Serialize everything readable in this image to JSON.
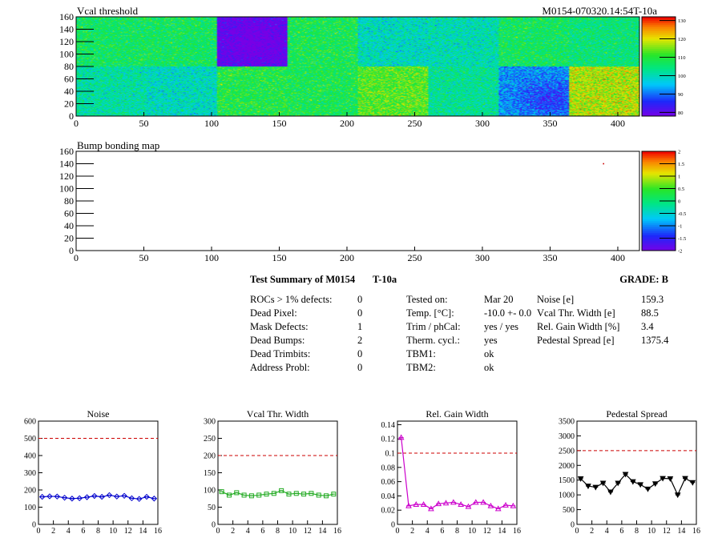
{
  "heatmap1": {
    "title": "Vcal threshold",
    "tag": "M0154-070320.14:54T-10a",
    "xticks": [
      "0",
      "50",
      "100",
      "150",
      "200",
      "250",
      "300",
      "350",
      "400"
    ],
    "yticks": [
      "0",
      "20",
      "40",
      "60",
      "80",
      "100",
      "120",
      "140",
      "160"
    ],
    "zticks": [
      "80",
      "90",
      "100",
      "110",
      "120",
      "130"
    ]
  },
  "heatmap2": {
    "title": "Bump bonding map",
    "xticks": [
      "0",
      "50",
      "100",
      "150",
      "200",
      "250",
      "300",
      "350",
      "400"
    ],
    "yticks": [
      "0",
      "20",
      "40",
      "60",
      "80",
      "100",
      "120",
      "140",
      "160"
    ],
    "zticks": [
      "-2",
      "-1.5",
      "-1",
      "-0.5",
      "0",
      "0.5",
      "1",
      "1.5",
      "2"
    ]
  },
  "summary": {
    "title": "Test Summary of M0154",
    "temp_tag": "T-10a",
    "grade": "GRADE:  B",
    "col1": [
      {
        "label": "ROCs > 1% defects:",
        "value": "0"
      },
      {
        "label": "Dead Pixel:",
        "value": "0"
      },
      {
        "label": "Mask Defects:",
        "value": "1"
      },
      {
        "label": "Dead Bumps:",
        "value": "2"
      },
      {
        "label": "Dead Trimbits:",
        "value": "0"
      },
      {
        "label": "Address Probl:",
        "value": "0"
      }
    ],
    "col2": [
      {
        "label": "Tested on:",
        "value": "Mar 20"
      },
      {
        "label": "Temp. [°C]:",
        "value": "-10.0 +- 0.0"
      },
      {
        "label": "Trim / phCal:",
        "value": "yes / yes"
      },
      {
        "label": "Therm. cycl.:",
        "value": "yes"
      },
      {
        "label": "TBM1:",
        "value": "ok"
      },
      {
        "label": "TBM2:",
        "value": "ok"
      }
    ],
    "col3": [
      {
        "label": "Noise [e]",
        "value": "159.3"
      },
      {
        "label": "Vcal Thr. Width [e]",
        "value": "88.5"
      },
      {
        "label": "Rel. Gain Width [%]",
        "value": "3.4"
      },
      {
        "label": "Pedestal Spread [e]",
        "value": "1375.4"
      }
    ]
  },
  "chart_data": [
    {
      "type": "heatmap",
      "title": "Vcal threshold",
      "xlim": [
        0,
        416
      ],
      "ylim": [
        0,
        160
      ],
      "zlim": [
        78,
        132
      ],
      "roc_mean_top": [
        107,
        107,
        80,
        108,
        100,
        101,
        107,
        105
      ],
      "roc_mean_bottom": [
        102,
        100,
        109,
        108,
        113,
        103,
        93,
        118
      ]
    },
    {
      "type": "heatmap",
      "title": "Bump bonding map",
      "xlim": [
        0,
        416
      ],
      "ylim": [
        0,
        160
      ],
      "zlim": [
        -2,
        2
      ],
      "points": [
        {
          "x": 389,
          "y": 141
        }
      ]
    },
    {
      "type": "line",
      "title": "Noise",
      "xlim": [
        0,
        16
      ],
      "ylim": [
        0,
        600
      ],
      "xticks": [
        "0",
        "2",
        "4",
        "6",
        "8",
        "10",
        "12",
        "14",
        "16"
      ],
      "yticks": [
        "0",
        "100",
        "200",
        "300",
        "400",
        "500",
        "600"
      ],
      "limit": 500,
      "x": [
        0.5,
        1.5,
        2.5,
        3.5,
        4.5,
        5.5,
        6.5,
        7.5,
        8.5,
        9.5,
        10.5,
        11.5,
        12.5,
        13.5,
        14.5,
        15.5
      ],
      "values": [
        160,
        163,
        162,
        155,
        150,
        152,
        158,
        165,
        160,
        170,
        162,
        166,
        152,
        148,
        160,
        150
      ]
    },
    {
      "type": "line",
      "title": "Vcal Thr. Width",
      "xlim": [
        0,
        16
      ],
      "ylim": [
        0,
        300
      ],
      "xticks": [
        "0",
        "2",
        "4",
        "6",
        "8",
        "10",
        "12",
        "14",
        "16"
      ],
      "yticks": [
        "0",
        "50",
        "100",
        "150",
        "200",
        "250",
        "300"
      ],
      "limit": 200,
      "x": [
        0.5,
        1.5,
        2.5,
        3.5,
        4.5,
        5.5,
        6.5,
        7.5,
        8.5,
        9.5,
        10.5,
        11.5,
        12.5,
        13.5,
        14.5,
        15.5
      ],
      "values": [
        95,
        85,
        92,
        85,
        83,
        85,
        88,
        90,
        98,
        88,
        90,
        88,
        90,
        85,
        83,
        88
      ]
    },
    {
      "type": "line",
      "title": "Rel. Gain Width",
      "xlim": [
        0,
        16
      ],
      "ylim": [
        0,
        0.145
      ],
      "xticks": [
        "0",
        "2",
        "4",
        "6",
        "8",
        "10",
        "12",
        "14",
        "16"
      ],
      "yticks": [
        "0",
        "0.02",
        "0.04",
        "0.06",
        "0.08",
        "0.1",
        "0.12",
        "0.14"
      ],
      "limit": 0.1,
      "x": [
        0.5,
        1.5,
        2.5,
        3.5,
        4.5,
        5.5,
        6.5,
        7.5,
        8.5,
        9.5,
        10.5,
        11.5,
        12.5,
        13.5,
        14.5,
        15.5
      ],
      "values": [
        0.122,
        0.026,
        0.028,
        0.028,
        0.022,
        0.029,
        0.03,
        0.031,
        0.028,
        0.025,
        0.031,
        0.031,
        0.026,
        0.022,
        0.027,
        0.026
      ]
    },
    {
      "type": "line",
      "title": "Pedestal Spread",
      "xlim": [
        0,
        16
      ],
      "ylim": [
        0,
        3500
      ],
      "xticks": [
        "0",
        "2",
        "4",
        "6",
        "8",
        "10",
        "12",
        "14",
        "16"
      ],
      "yticks": [
        "0",
        "500",
        "1000",
        "1500",
        "2000",
        "2500",
        "3000",
        "3500"
      ],
      "limit": 2500,
      "x": [
        0.5,
        1.5,
        2.5,
        3.5,
        4.5,
        5.5,
        6.5,
        7.5,
        8.5,
        9.5,
        10.5,
        11.5,
        12.5,
        13.5,
        14.5,
        15.5
      ],
      "values": [
        1550,
        1300,
        1260,
        1400,
        1100,
        1400,
        1700,
        1450,
        1350,
        1200,
        1380,
        1560,
        1550,
        1000,
        1560,
        1420
      ]
    }
  ],
  "colors": {
    "noise": "#0000cc",
    "vcal_width": "#22aa22",
    "gain_width": "#cc00cc",
    "pedestal": "#000000",
    "limit_line": "#cc0000",
    "bump_point": "#cc0000"
  },
  "markers": {
    "noise": "diamond",
    "vcal_width": "square",
    "gain_width": "triangle-up",
    "pedestal": "triangle-down"
  }
}
